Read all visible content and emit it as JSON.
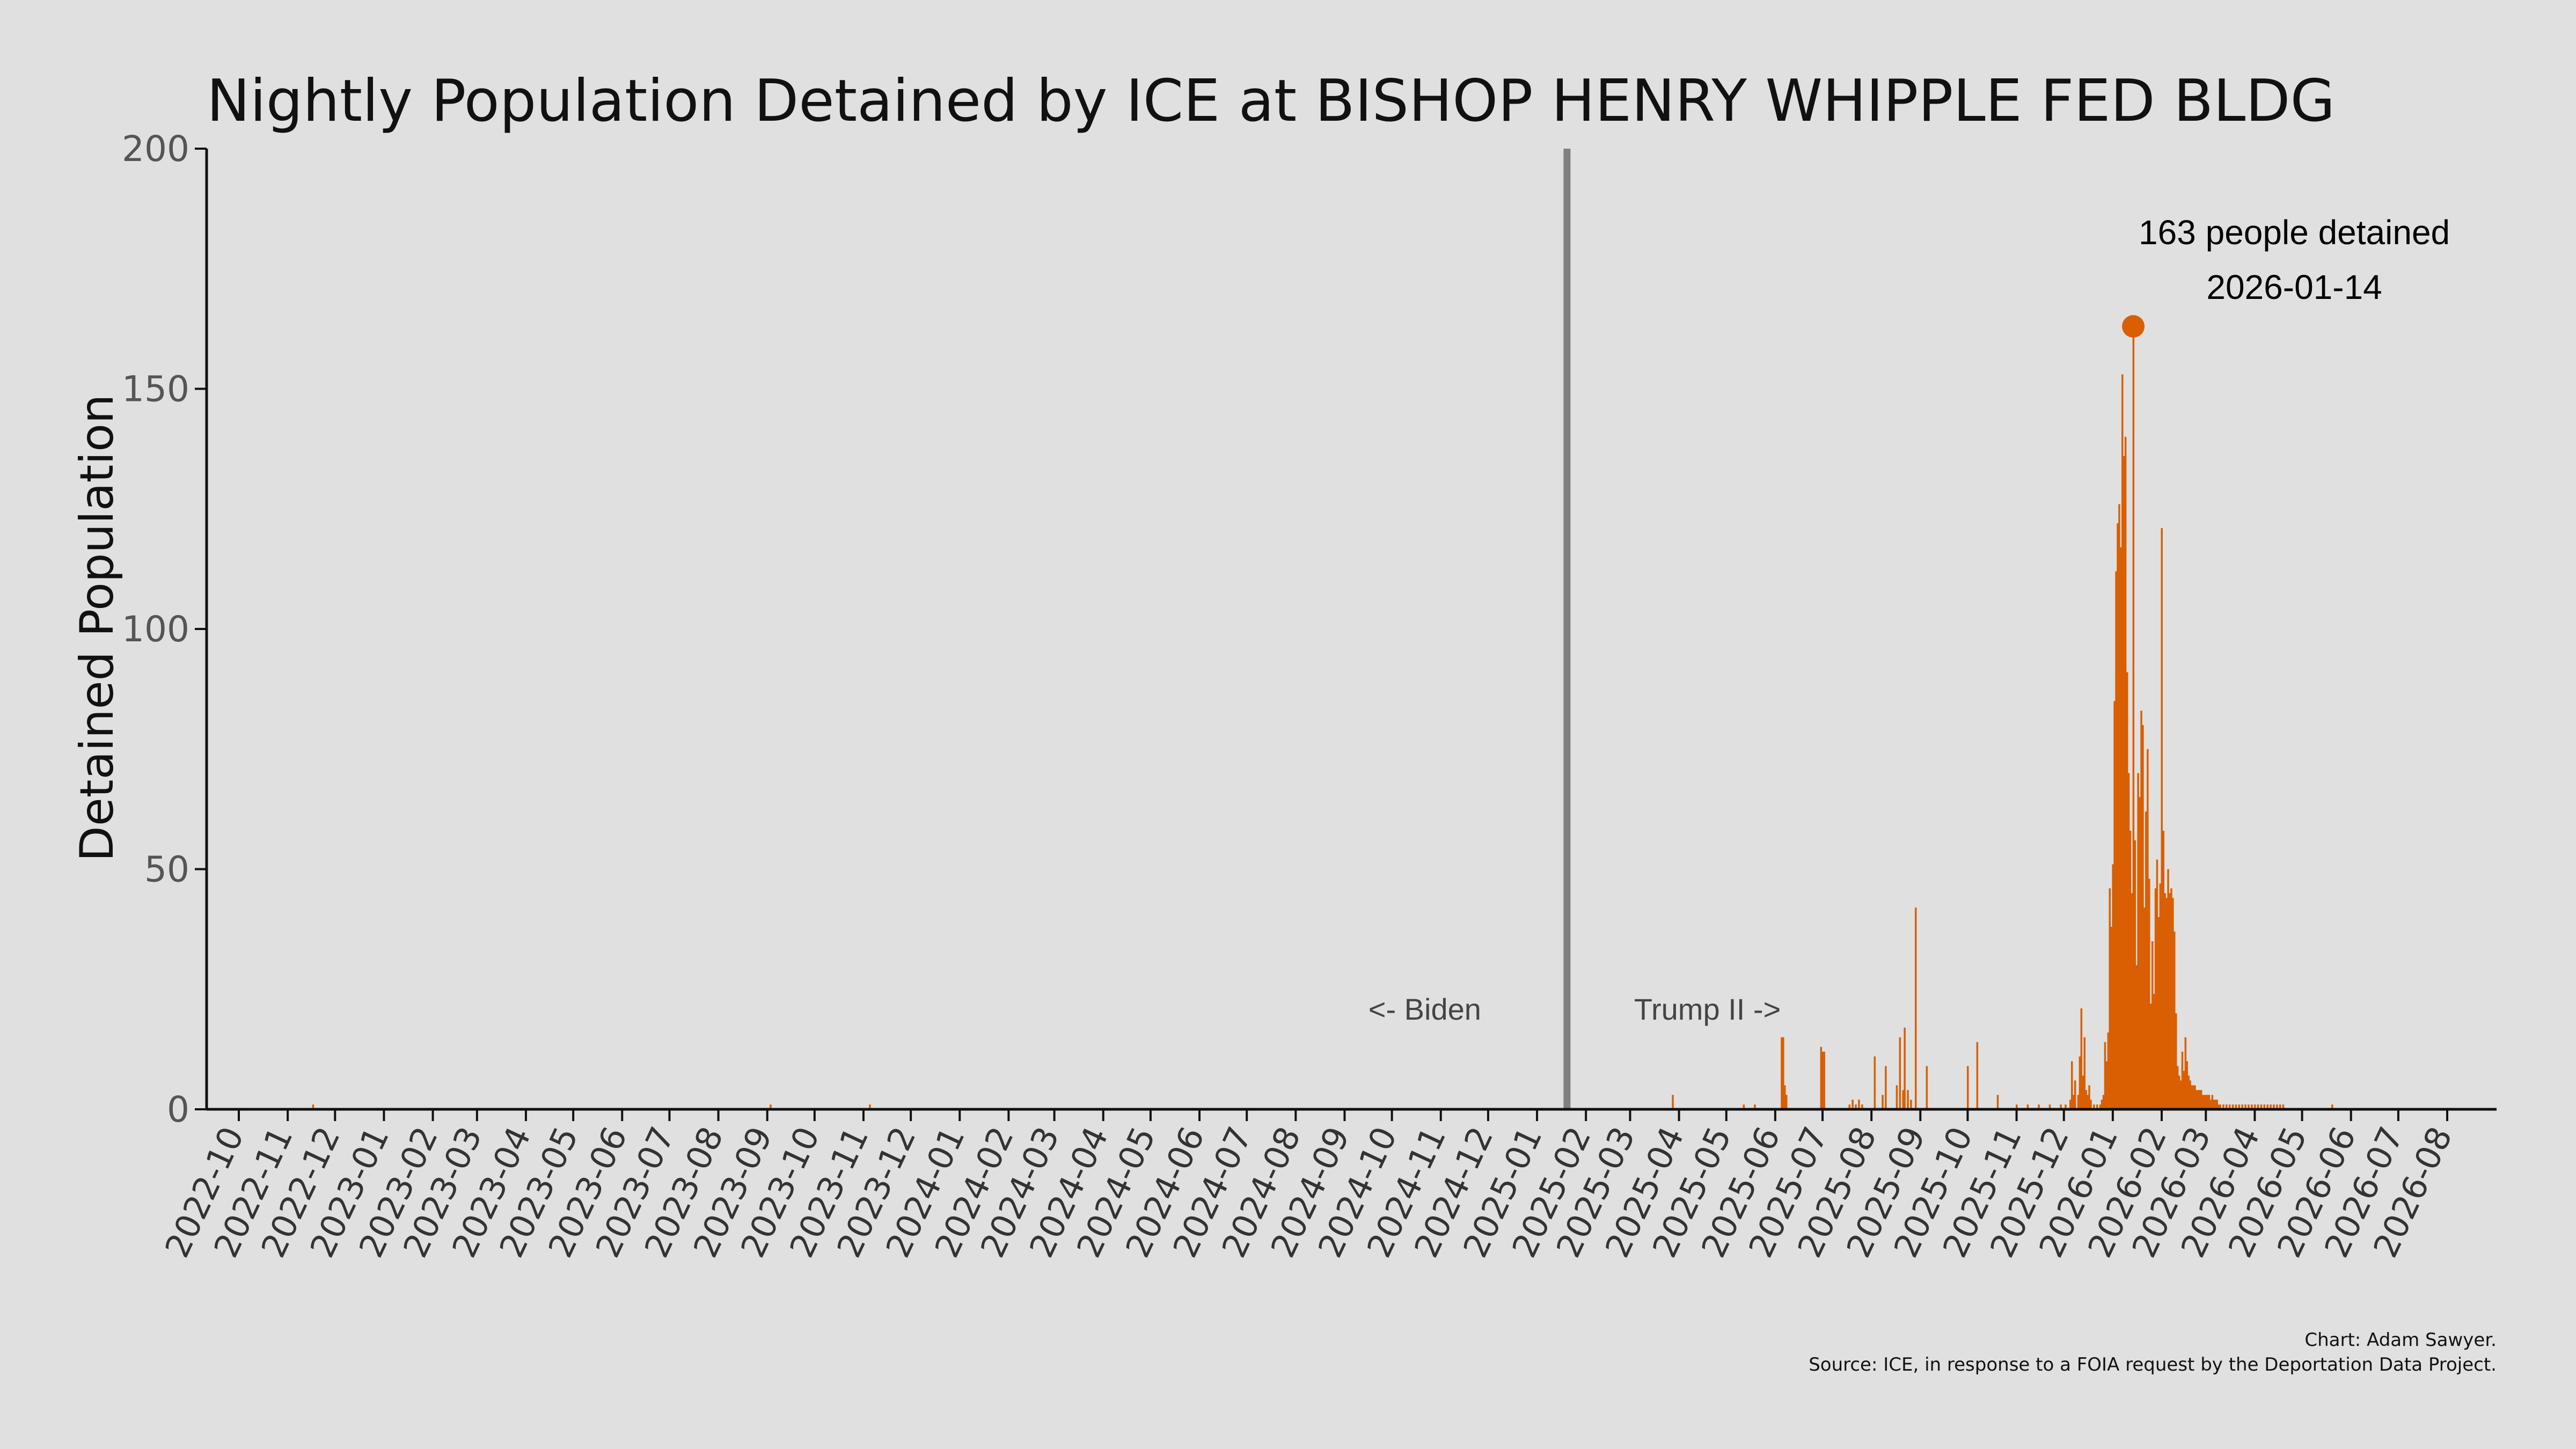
{
  "title": "Nightly Population Detained by ICE at BISHOP HENRY WHIPPLE FED BLDG",
  "credits": {
    "line1": "Chart: Adam Sawyer.",
    "line2": "Source: ICE, in response to a FOIA request by the Deportation Data Project."
  },
  "colors": {
    "bars": "#d95f02",
    "background": "#e0e0e0",
    "divider": "#808080"
  },
  "chart_data": {
    "type": "bar",
    "ylabel": "Detained Population",
    "ylim": [
      0,
      200
    ],
    "yticks": [
      0,
      50,
      100,
      150,
      200
    ],
    "xlim": [
      "2022-10-01",
      "2026-08-01"
    ],
    "xticks": [
      "2022-10",
      "2022-11",
      "2022-12",
      "2023-01",
      "2023-02",
      "2023-03",
      "2023-04",
      "2023-05",
      "2023-06",
      "2023-07",
      "2023-08",
      "2023-09",
      "2023-10",
      "2023-11",
      "2023-12",
      "2024-01",
      "2024-02",
      "2024-03",
      "2024-04",
      "2024-05",
      "2024-06",
      "2024-07",
      "2024-08",
      "2024-09",
      "2024-10",
      "2024-11",
      "2024-12",
      "2025-01",
      "2025-02",
      "2025-03",
      "2025-04",
      "2025-05",
      "2025-06",
      "2025-07",
      "2025-08",
      "2025-09",
      "2025-10",
      "2025-11",
      "2025-12",
      "2026-01",
      "2026-02",
      "2026-03",
      "2026-04",
      "2026-05",
      "2026-06",
      "2026-07",
      "2026-08"
    ],
    "divider_date": "2025-01-20",
    "era_labels": {
      "left": "<- Biden",
      "right": "Trump II ->"
    },
    "peak": {
      "date": "2026-01-14",
      "value": 163,
      "label_line1": "163 people detained",
      "label_line2": "2026-01-14"
    },
    "grid": false,
    "series": [
      {
        "points": [
          [
            "2022-11-17",
            1
          ],
          [
            "2023-09-03",
            1
          ],
          [
            "2023-11-05",
            1
          ],
          [
            "2025-03-28",
            3
          ],
          [
            "2025-05-12",
            1
          ],
          [
            "2025-05-19",
            1
          ],
          [
            "2025-06-05",
            15
          ],
          [
            "2025-06-06",
            15
          ],
          [
            "2025-06-07",
            5
          ],
          [
            "2025-06-08",
            3
          ],
          [
            "2025-06-30",
            13
          ],
          [
            "2025-07-01",
            12
          ],
          [
            "2025-07-02",
            12
          ],
          [
            "2025-07-18",
            1
          ],
          [
            "2025-07-20",
            2
          ],
          [
            "2025-07-22",
            1
          ],
          [
            "2025-07-24",
            2
          ],
          [
            "2025-07-26",
            1
          ],
          [
            "2025-08-03",
            11
          ],
          [
            "2025-08-08",
            3
          ],
          [
            "2025-08-10",
            9
          ],
          [
            "2025-08-17",
            5
          ],
          [
            "2025-08-19",
            15
          ],
          [
            "2025-08-21",
            4
          ],
          [
            "2025-08-22",
            17
          ],
          [
            "2025-08-24",
            4
          ],
          [
            "2025-08-26",
            2
          ],
          [
            "2025-08-29",
            42
          ],
          [
            "2025-09-05",
            9
          ],
          [
            "2025-10-01",
            9
          ],
          [
            "2025-10-07",
            14
          ],
          [
            "2025-10-20",
            3
          ],
          [
            "2025-11-01",
            1
          ],
          [
            "2025-11-08",
            1
          ],
          [
            "2025-11-15",
            1
          ],
          [
            "2025-11-22",
            1
          ],
          [
            "2025-11-29",
            1
          ],
          [
            "2025-12-02",
            1
          ],
          [
            "2025-12-05",
            2
          ],
          [
            "2025-12-06",
            10
          ],
          [
            "2025-12-07",
            3
          ],
          [
            "2025-12-08",
            6
          ],
          [
            "2025-12-10",
            3
          ],
          [
            "2025-12-11",
            11
          ],
          [
            "2025-12-12",
            21
          ],
          [
            "2025-12-13",
            7
          ],
          [
            "2025-12-14",
            15
          ],
          [
            "2025-12-15",
            4
          ],
          [
            "2025-12-16",
            3
          ],
          [
            "2025-12-17",
            5
          ],
          [
            "2025-12-18",
            2
          ],
          [
            "2025-12-20",
            1
          ],
          [
            "2025-12-22",
            1
          ],
          [
            "2025-12-24",
            1
          ],
          [
            "2025-12-25",
            2
          ],
          [
            "2025-12-26",
            3
          ],
          [
            "2025-12-27",
            14
          ],
          [
            "2025-12-28",
            10
          ],
          [
            "2025-12-29",
            16
          ],
          [
            "2025-12-30",
            46
          ],
          [
            "2025-12-31",
            38
          ],
          [
            "2026-01-01",
            51
          ],
          [
            "2026-01-02",
            85
          ],
          [
            "2026-01-03",
            112
          ],
          [
            "2026-01-04",
            122
          ],
          [
            "2026-01-05",
            126
          ],
          [
            "2026-01-06",
            117
          ],
          [
            "2026-01-07",
            153
          ],
          [
            "2026-01-08",
            136
          ],
          [
            "2026-01-09",
            140
          ],
          [
            "2026-01-10",
            91
          ],
          [
            "2026-01-11",
            70
          ],
          [
            "2026-01-12",
            58
          ],
          [
            "2026-01-13",
            45
          ],
          [
            "2026-01-14",
            163
          ],
          [
            "2026-01-15",
            56
          ],
          [
            "2026-01-16",
            30
          ],
          [
            "2026-01-17",
            70
          ],
          [
            "2026-01-18",
            65
          ],
          [
            "2026-01-19",
            83
          ],
          [
            "2026-01-20",
            80
          ],
          [
            "2026-01-21",
            42
          ],
          [
            "2026-01-22",
            62
          ],
          [
            "2026-01-23",
            75
          ],
          [
            "2026-01-24",
            48
          ],
          [
            "2026-01-25",
            22
          ],
          [
            "2026-01-26",
            35
          ],
          [
            "2026-01-27",
            24
          ],
          [
            "2026-01-28",
            46
          ],
          [
            "2026-01-29",
            52
          ],
          [
            "2026-01-30",
            40
          ],
          [
            "2026-01-31",
            47
          ],
          [
            "2026-02-01",
            121
          ],
          [
            "2026-02-02",
            58
          ],
          [
            "2026-02-03",
            45
          ],
          [
            "2026-02-04",
            44
          ],
          [
            "2026-02-05",
            50
          ],
          [
            "2026-02-06",
            45
          ],
          [
            "2026-02-07",
            46
          ],
          [
            "2026-02-08",
            44
          ],
          [
            "2026-02-09",
            37
          ],
          [
            "2026-02-10",
            20
          ],
          [
            "2026-02-11",
            9
          ],
          [
            "2026-02-12",
            7
          ],
          [
            "2026-02-13",
            6
          ],
          [
            "2026-02-14",
            12
          ],
          [
            "2026-02-15",
            8
          ],
          [
            "2026-02-16",
            15
          ],
          [
            "2026-02-17",
            10
          ],
          [
            "2026-02-18",
            7
          ],
          [
            "2026-02-19",
            6
          ],
          [
            "2026-02-20",
            5
          ],
          [
            "2026-02-21",
            5
          ],
          [
            "2026-02-22",
            5
          ],
          [
            "2026-02-23",
            4
          ],
          [
            "2026-02-24",
            4
          ],
          [
            "2026-02-25",
            4
          ],
          [
            "2026-02-26",
            4
          ],
          [
            "2026-02-27",
            3
          ],
          [
            "2026-02-28",
            3
          ],
          [
            "2026-03-01",
            3
          ],
          [
            "2026-03-02",
            3
          ],
          [
            "2026-03-03",
            3
          ],
          [
            "2026-03-04",
            2
          ],
          [
            "2026-03-05",
            3
          ],
          [
            "2026-03-06",
            2
          ],
          [
            "2026-03-07",
            2
          ],
          [
            "2026-03-08",
            2
          ],
          [
            "2026-03-09",
            1
          ],
          [
            "2026-03-10",
            1
          ],
          [
            "2026-03-12",
            1
          ],
          [
            "2026-03-14",
            1
          ],
          [
            "2026-03-16",
            1
          ],
          [
            "2026-03-18",
            1
          ],
          [
            "2026-03-20",
            1
          ],
          [
            "2026-03-22",
            1
          ],
          [
            "2026-03-24",
            1
          ],
          [
            "2026-03-26",
            1
          ],
          [
            "2026-03-28",
            1
          ],
          [
            "2026-03-30",
            1
          ],
          [
            "2026-04-01",
            1
          ],
          [
            "2026-04-03",
            1
          ],
          [
            "2026-04-05",
            1
          ],
          [
            "2026-04-07",
            1
          ],
          [
            "2026-04-09",
            1
          ],
          [
            "2026-04-11",
            1
          ],
          [
            "2026-04-13",
            1
          ],
          [
            "2026-04-15",
            1
          ],
          [
            "2026-04-17",
            1
          ],
          [
            "2026-04-19",
            1
          ],
          [
            "2026-05-20",
            1
          ]
        ]
      }
    ]
  }
}
